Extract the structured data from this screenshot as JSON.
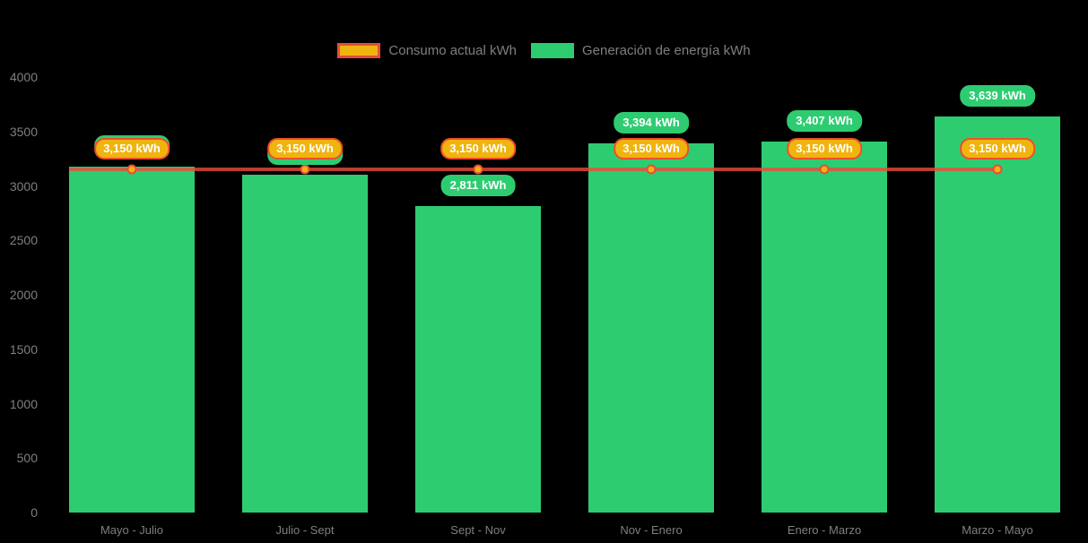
{
  "colors": {
    "background": "#000000",
    "bar_green": "#2ecc71",
    "consumption_gold": "#f0b40f",
    "consumption_red": "#e74c3c",
    "badge_border_orange": "#ee4e2b",
    "axis_text_gray": "#7f7f7f",
    "badge_text": "#ffffff"
  },
  "legend": {
    "items": [
      {
        "label": "Consumo actual kWh"
      },
      {
        "label": "Generación de energía kWh"
      }
    ]
  },
  "chart_data": {
    "type": "bar",
    "title": "",
    "xlabel": "",
    "ylabel": "",
    "categories": [
      "Mayo - Julio",
      "Julio - Sept",
      "Sept - Nov",
      "Nov - Enero",
      "Enero - Marzo",
      "Marzo - Mayo"
    ],
    "series": [
      {
        "name": "Generación de energía kWh",
        "type": "bar",
        "color": "#2ecc71",
        "values": [
          3180,
          3100,
          2811,
          3394,
          3407,
          3639
        ],
        "point_labels": [
          "3,180 kWh",
          "3,100 kWh",
          "2,811 kWh",
          "3,394 kWh",
          "3,407 kWh",
          "3,639 kWh"
        ]
      },
      {
        "name": "Consumo actual kWh",
        "type": "line",
        "color": "#e74c3c",
        "marker_color": "#f0b40f",
        "values": [
          3150,
          3150,
          3150,
          3150,
          3150,
          3150
        ],
        "point_labels": [
          "3,150 kWh",
          "3,150 kWh",
          "3,150 kWh",
          "3,150 kWh",
          "3,150 kWh",
          "3,150 kWh"
        ]
      }
    ],
    "ylim": [
      0,
      4000
    ],
    "yticks": [
      0,
      500,
      1000,
      1500,
      2000,
      2500,
      3000,
      3500,
      4000
    ],
    "grid": false,
    "legend_position": "top"
  }
}
